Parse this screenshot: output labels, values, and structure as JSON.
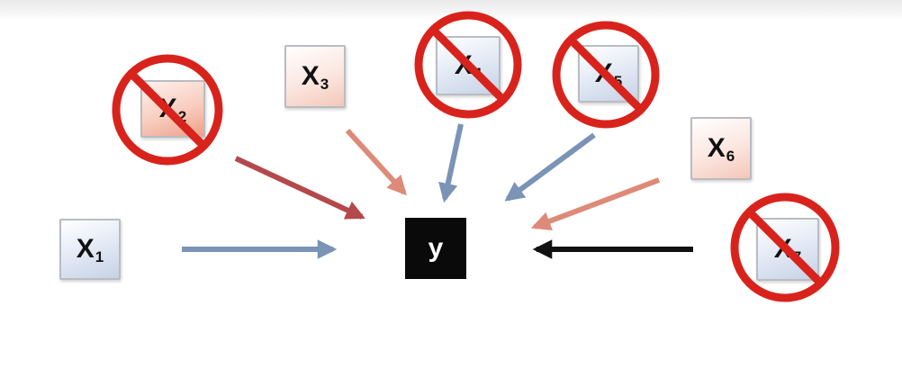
{
  "target": {
    "label": "y"
  },
  "variables": [
    {
      "id": "x1",
      "letter": "X",
      "sub": "1",
      "color": "blue",
      "crossed": false
    },
    {
      "id": "x2",
      "letter": "X",
      "sub": "2",
      "color": "red",
      "crossed": true
    },
    {
      "id": "x3",
      "letter": "X",
      "sub": "3",
      "color": "pink",
      "crossed": false
    },
    {
      "id": "x4",
      "letter": "X",
      "sub": "4",
      "color": "blue",
      "crossed": true
    },
    {
      "id": "x5",
      "letter": "X",
      "sub": "5",
      "color": "blue",
      "crossed": true
    },
    {
      "id": "x6",
      "letter": "X",
      "sub": "6",
      "color": "pink",
      "crossed": false
    },
    {
      "id": "x7",
      "letter": "X",
      "sub": "7",
      "color": "blue",
      "crossed": true
    }
  ],
  "colors": {
    "blue_arrow": "#7a93b6",
    "red_arrow": "#b5484b",
    "pink_arrow": "#dd8a78",
    "black_arrow": "#111111",
    "prohibition": "#d8231c"
  }
}
